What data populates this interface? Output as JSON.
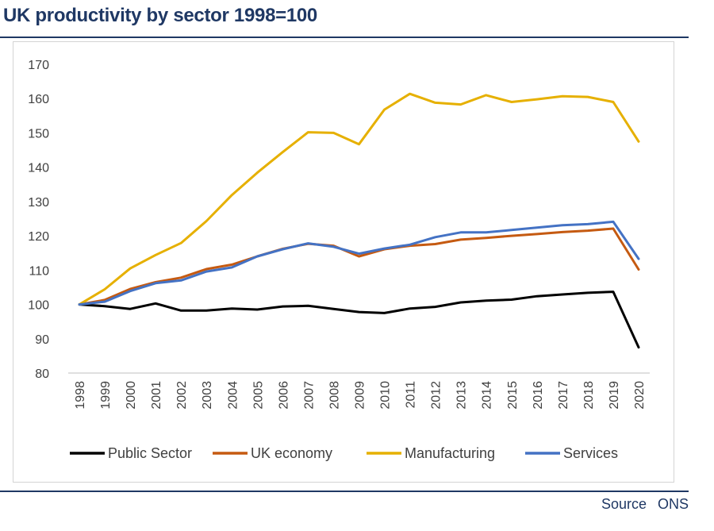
{
  "chart_data": {
    "type": "line",
    "title": "UK productivity by sector 1998=100",
    "x": [
      "1998",
      "1999",
      "2000",
      "2001",
      "2002",
      "2003",
      "2004",
      "2005",
      "2006",
      "2007",
      "2008",
      "2009",
      "2010",
      "2011",
      "2012",
      "2013",
      "2014",
      "2015",
      "2016",
      "2017",
      "2018",
      "2019",
      "2020"
    ],
    "ylim": [
      80,
      170
    ],
    "yticks": [
      80,
      90,
      100,
      110,
      120,
      130,
      140,
      150,
      160,
      170
    ],
    "grid": false,
    "legend": "bottom",
    "series": [
      {
        "name": "Public Sector",
        "color": "#000000",
        "values": [
          100,
          99.5,
          98.7,
          100.3,
          98.2,
          98.2,
          98.8,
          98.5,
          99.4,
          99.6,
          98.7,
          97.8,
          97.5,
          98.8,
          99.3,
          100.6,
          101.1,
          101.4,
          102.4,
          102.9,
          103.4,
          103.7,
          87.5
        ]
      },
      {
        "name": "UK economy",
        "color": "#c55a11",
        "values": [
          100,
          101.3,
          104.5,
          106.5,
          107.8,
          110.3,
          111.6,
          114.0,
          116.2,
          117.7,
          117.1,
          114.0,
          116.1,
          117.1,
          117.6,
          118.9,
          119.4,
          120.0,
          120.5,
          121.1,
          121.5,
          122.1,
          110.2
        ]
      },
      {
        "name": "Manufacturing",
        "color": "#e6b000",
        "values": [
          100,
          104.4,
          110.5,
          114.4,
          117.9,
          124.3,
          131.9,
          138.4,
          144.4,
          150.2,
          150.0,
          146.7,
          156.8,
          161.4,
          158.8,
          158.3,
          161.0,
          159.0,
          159.8,
          160.7,
          160.5,
          159.0,
          147.5
        ]
      },
      {
        "name": "Services",
        "color": "#4472c4",
        "values": [
          100,
          100.8,
          103.9,
          106.2,
          107.0,
          109.6,
          110.8,
          114.0,
          116.1,
          117.8,
          116.8,
          114.8,
          116.3,
          117.4,
          119.6,
          121.0,
          121.0,
          121.7,
          122.4,
          123.1,
          123.4,
          124.1,
          113.3
        ]
      }
    ]
  },
  "source": {
    "label": "Source",
    "value": "ONS"
  }
}
